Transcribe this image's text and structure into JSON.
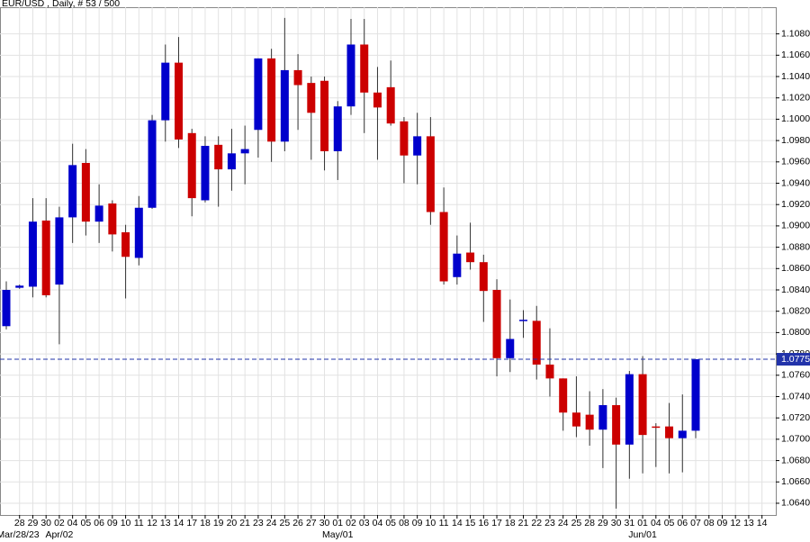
{
  "chart_data": {
    "type": "candlestick",
    "title": "EUR/USD , Daily, # 53 / 500",
    "x": [
      null,
      "28",
      "29",
      "30",
      "02",
      "04",
      "05",
      "06",
      "09",
      "10",
      "11",
      "12",
      "13",
      "14",
      "17",
      "18",
      "19",
      "20",
      "21",
      "23",
      "24",
      "25",
      "26",
      "27",
      "30",
      "01",
      "02",
      "03",
      "04",
      "05",
      "08",
      "09",
      "10",
      "11",
      "14",
      "15",
      "16",
      "17",
      "18",
      "21",
      "22",
      "23",
      "24",
      "25",
      "28",
      "29",
      "30",
      "31",
      "01",
      "04",
      "05",
      "06",
      "07",
      "08",
      "09",
      "12",
      "13",
      "14"
    ],
    "x_periods": [
      null,
      "Mar/28/23",
      null,
      null,
      "Apr/02",
      null,
      null,
      null,
      null,
      null,
      null,
      null,
      null,
      null,
      null,
      null,
      null,
      null,
      null,
      null,
      null,
      null,
      null,
      null,
      null,
      "May/01",
      null,
      null,
      null,
      null,
      null,
      null,
      null,
      null,
      null,
      null,
      null,
      null,
      null,
      null,
      null,
      null,
      null,
      null,
      null,
      null,
      null,
      null,
      "Jun/01",
      null,
      null,
      null,
      null,
      null,
      null,
      null,
      null,
      null
    ],
    "open": [
      1.0806,
      1.0842,
      1.0843,
      1.0905,
      1.0845,
      1.0908,
      1.0959,
      1.0904,
      1.0921,
      1.0894,
      1.087,
      1.0917,
      1.0999,
      1.1053,
      1.0987,
      1.0924,
      1.0976,
      1.0953,
      1.0968,
      1.099,
      1.1057,
      1.0979,
      1.1046,
      1.1034,
      1.1036,
      1.097,
      1.1012,
      1.107,
      1.1025,
      1.103,
      1.0998,
      1.0966,
      1.0984,
      1.0913,
      1.0852,
      1.0875,
      1.0866,
      1.084,
      1.0776,
      1.0811,
      1.0811,
      1.077,
      1.0757,
      1.0725,
      1.0723,
      1.0709,
      1.0732,
      1.0695,
      1.0761,
      1.0712,
      1.0712,
      1.0701,
      1.0708,
      null,
      null,
      null,
      null,
      null
    ],
    "high": [
      1.0848,
      1.0845,
      1.0926,
      1.0926,
      1.0918,
      1.0977,
      1.0972,
      1.0939,
      1.0924,
      1.0901,
      1.0928,
      1.1004,
      1.107,
      1.1077,
      1.0991,
      1.0984,
      1.0984,
      1.0991,
      1.0994,
      1.1057,
      1.1066,
      1.1095,
      1.1061,
      1.104,
      1.104,
      1.1017,
      1.1094,
      1.1094,
      1.1049,
      1.1055,
      1.1002,
      1.1006,
      1.1002,
      1.0936,
      1.0891,
      1.0903,
      1.0873,
      1.085,
      1.0831,
      1.0821,
      1.0825,
      1.0804,
      1.0757,
      1.0759,
      1.0745,
      1.0747,
      1.0739,
      1.0764,
      1.0778,
      1.0715,
      1.0734,
      1.0742,
      1.0775,
      null,
      null,
      null,
      null,
      null
    ],
    "low": [
      1.0803,
      1.0841,
      1.0833,
      1.0833,
      1.0789,
      1.0884,
      1.0891,
      1.0884,
      1.0876,
      1.0832,
      1.0863,
      1.0916,
      1.0979,
      1.0973,
      1.0909,
      1.0922,
      1.0918,
      1.0933,
      1.0939,
      1.0964,
      1.096,
      1.097,
      1.099,
      1.0962,
      1.0952,
      1.0943,
      1.1004,
      1.0987,
      1.0962,
      1.0994,
      1.094,
      1.0939,
      1.0901,
      1.0845,
      1.0845,
      1.0859,
      1.081,
      1.0759,
      1.0763,
      1.0795,
      1.0756,
      1.074,
      1.0708,
      1.0702,
      1.0694,
      1.0673,
      1.0635,
      1.0663,
      1.0668,
      1.0674,
      1.0668,
      1.0669,
      1.0701,
      null,
      null,
      null,
      null,
      null
    ],
    "close": [
      1.084,
      1.0844,
      1.0904,
      1.0835,
      1.0908,
      1.0957,
      1.0904,
      1.0919,
      1.0892,
      1.0871,
      1.0917,
      1.0999,
      1.1053,
      1.0981,
      1.0926,
      1.0975,
      1.0953,
      1.0968,
      1.0972,
      1.1057,
      1.0979,
      1.1046,
      1.1032,
      1.1006,
      1.097,
      1.1012,
      1.107,
      1.1025,
      1.1011,
      1.0996,
      1.0966,
      1.0984,
      1.0913,
      1.0848,
      1.0874,
      1.0866,
      1.0839,
      1.0776,
      1.0794,
      1.0812,
      1.077,
      1.0757,
      1.0725,
      1.0712,
      1.0709,
      1.0732,
      1.0695,
      1.0761,
      1.0704,
      1.0711,
      1.0701,
      1.0708,
      1.0775,
      null,
      null,
      null,
      null,
      null
    ],
    "up_color": "#0000cc",
    "down_color": "#cc0000",
    "last_price": 1.0775,
    "last_price_color": "#2233aa",
    "ylim": [
      1.0629,
      1.1105
    ],
    "yticks": [
      {
        "value": 1.064,
        "label": "1.0640"
      },
      {
        "value": 1.066,
        "label": "1.0660"
      },
      {
        "value": 1.068,
        "label": "1.0680"
      },
      {
        "value": 1.07,
        "label": "1.0700"
      },
      {
        "value": 1.072,
        "label": "1.0720"
      },
      {
        "value": 1.074,
        "label": "1.0740"
      },
      {
        "value": 1.076,
        "label": "1.0760"
      },
      {
        "value": 1.078,
        "label": "1.0780"
      },
      {
        "value": 1.08,
        "label": "1.0800"
      },
      {
        "value": 1.082,
        "label": "1.0820"
      },
      {
        "value": 1.084,
        "label": "1.0840"
      },
      {
        "value": 1.086,
        "label": "1.0860"
      },
      {
        "value": 1.088,
        "label": "1.0880"
      },
      {
        "value": 1.09,
        "label": "1.0900"
      },
      {
        "value": 1.092,
        "label": "1.0920"
      },
      {
        "value": 1.094,
        "label": "1.0940"
      },
      {
        "value": 1.096,
        "label": "1.0960"
      },
      {
        "value": 1.098,
        "label": "1.0980"
      },
      {
        "value": 1.1,
        "label": "1.1000"
      },
      {
        "value": 1.102,
        "label": "1.1020"
      },
      {
        "value": 1.104,
        "label": "1.1040"
      },
      {
        "value": 1.106,
        "label": "1.1060"
      },
      {
        "value": 1.108,
        "label": "1.1080"
      }
    ],
    "grid": true
  }
}
